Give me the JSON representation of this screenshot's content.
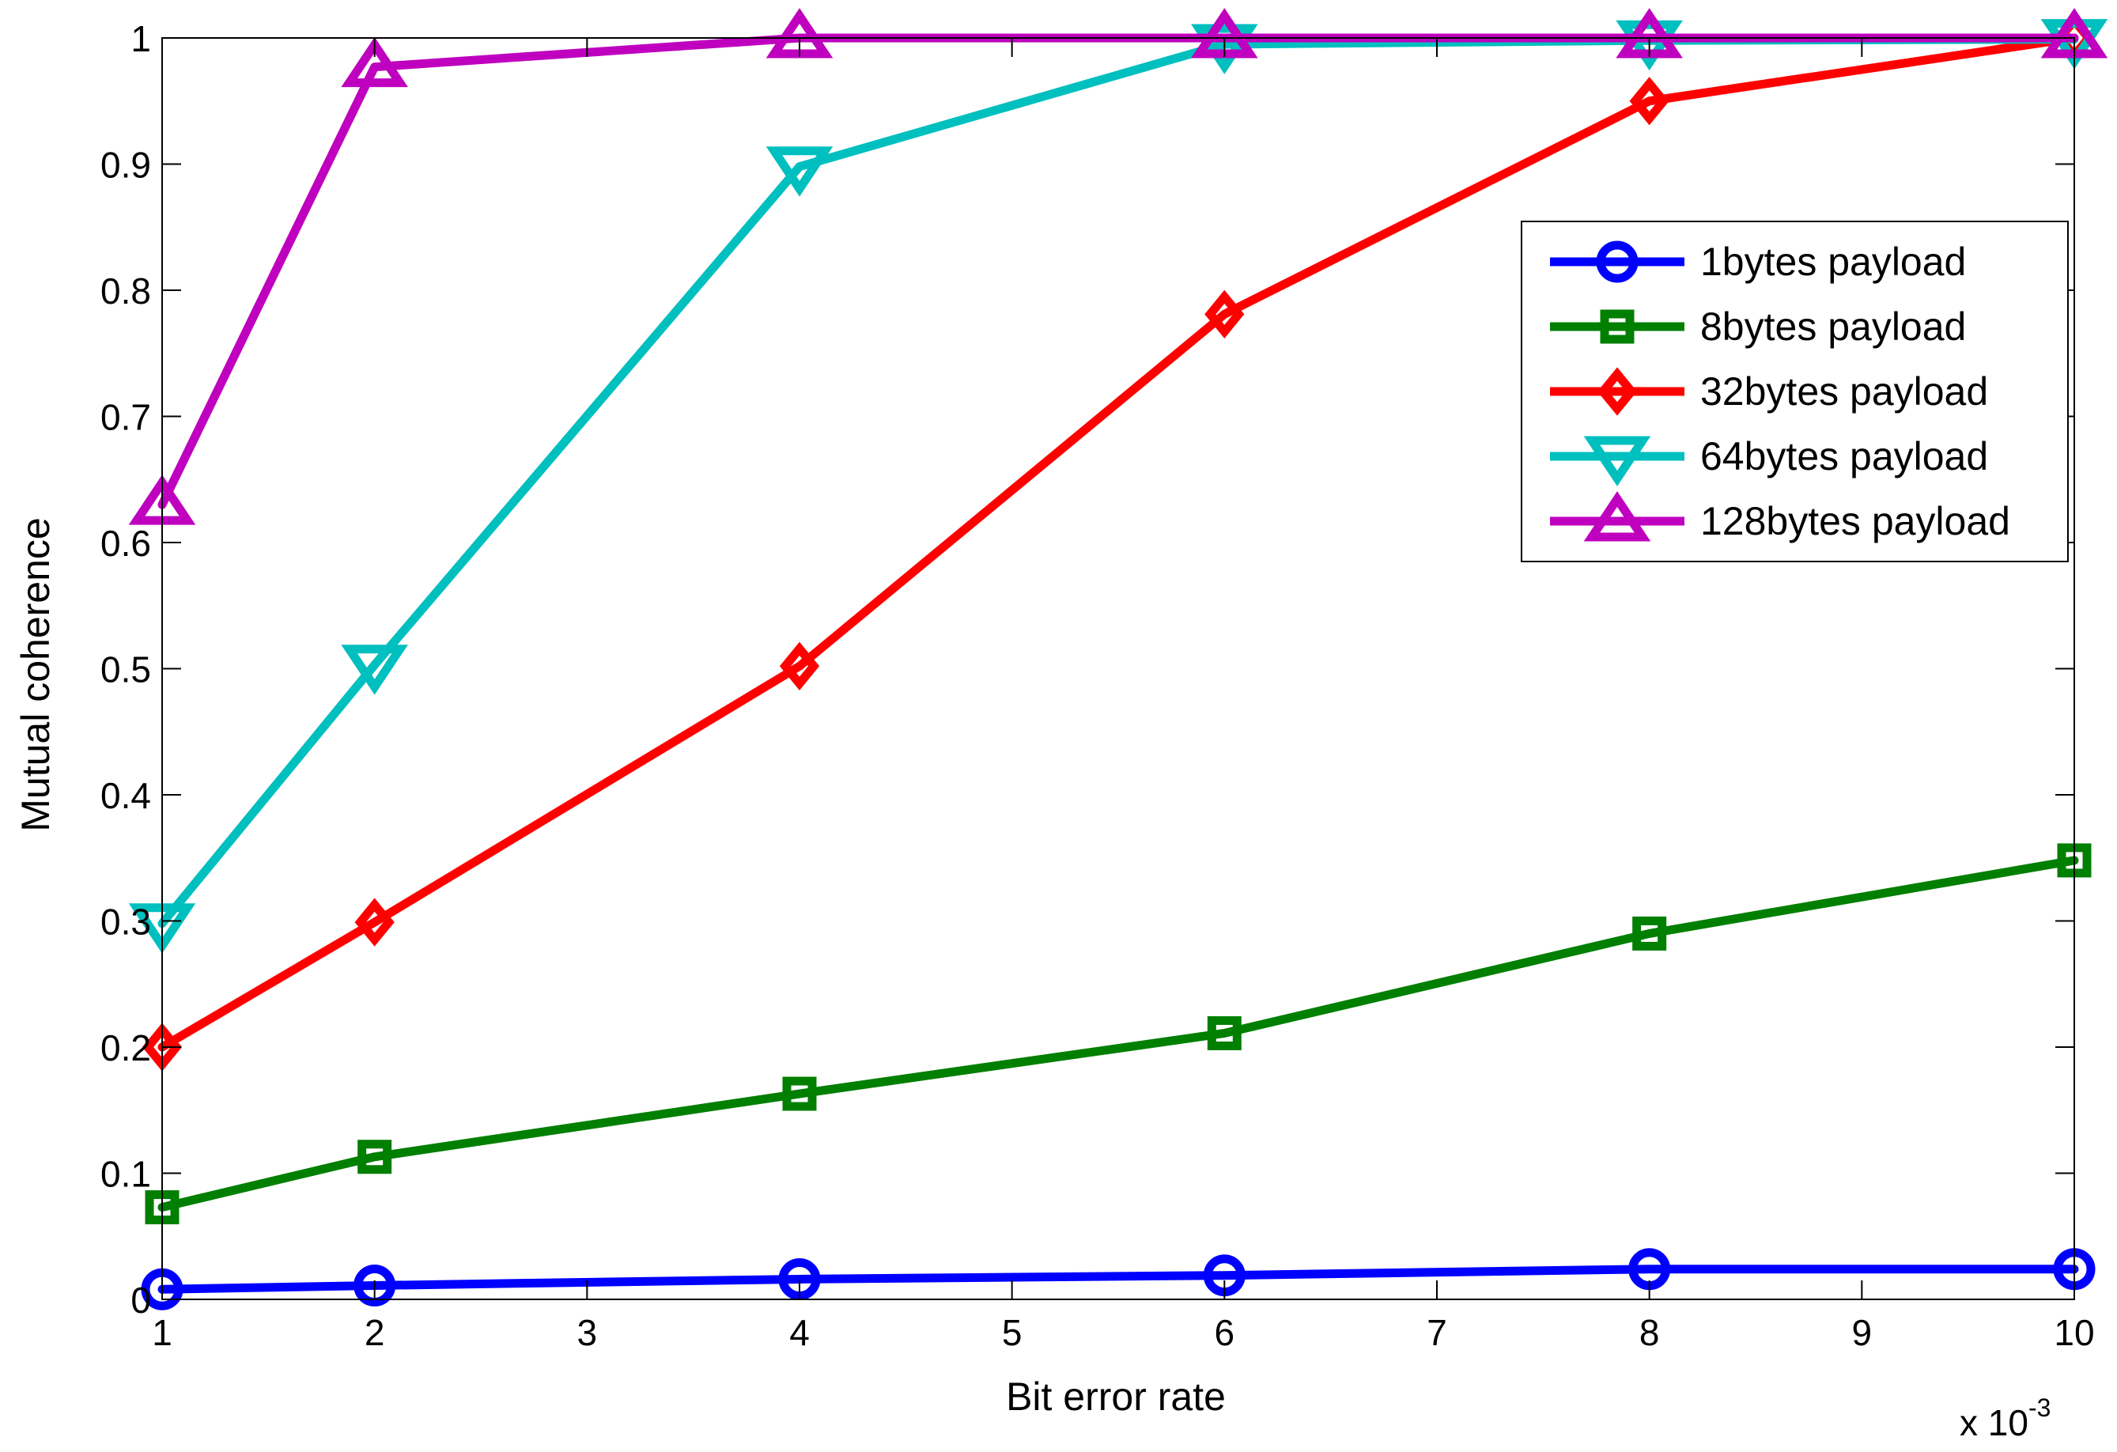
{
  "chart_data": {
    "type": "line",
    "title": "",
    "xlabel": "Bit error rate",
    "ylabel": "Mutual coherence",
    "x_multiplier": {
      "base": "x 10",
      "exponent": "-3"
    },
    "xlim": [
      1,
      10
    ],
    "ylim": [
      0,
      1
    ],
    "xticks": [
      1,
      2,
      3,
      4,
      5,
      6,
      7,
      8,
      9,
      10
    ],
    "yticks": [
      0,
      0.1,
      0.2,
      0.3,
      0.4,
      0.5,
      0.6,
      0.7,
      0.8,
      0.9,
      1
    ],
    "grid": false,
    "legend_position": "top-right",
    "x": [
      1,
      2,
      4,
      6,
      8,
      10
    ],
    "series": [
      {
        "name": "1bytes payload",
        "color": "#0000ff",
        "marker": "circle",
        "values": [
          0.008,
          0.011,
          0.016,
          0.019,
          0.024,
          0.024
        ]
      },
      {
        "name": "8bytes payload",
        "color": "#007f00",
        "marker": "square",
        "values": [
          0.073,
          0.113,
          0.163,
          0.211,
          0.29,
          0.348
        ]
      },
      {
        "name": "32bytes payload",
        "color": "#ff0000",
        "marker": "diamond",
        "values": [
          0.2,
          0.299,
          0.502,
          0.781,
          0.95,
          1.0
        ]
      },
      {
        "name": "64bytes payload",
        "color": "#00bfbf",
        "marker": "triangle-down",
        "values": [
          0.298,
          0.503,
          0.898,
          0.995,
          0.998,
          0.999
        ]
      },
      {
        "name": "128bytes payload",
        "color": "#bf00bf",
        "marker": "triangle-up",
        "values": [
          0.63,
          0.977,
          1.0,
          1.0,
          1.0,
          1.0
        ]
      }
    ]
  }
}
